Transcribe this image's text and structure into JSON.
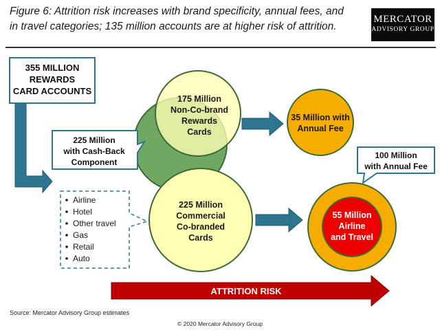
{
  "title_line1": "Figure 6: Attrition risk increases with brand specificity, annual fees, and",
  "title_line2": "in travel categories; 135 million accounts are at higher risk of attrition.",
  "logo": {
    "line1": "MERCATOR",
    "line2": "ADVISORY GROUP"
  },
  "boxes": {
    "total": [
      "355 MILLION",
      "REWARDS",
      "CARD ACCOUNTS"
    ],
    "cashback": [
      "225 Million",
      "with Cash-Back",
      "Component"
    ],
    "annual_fee_100": [
      "100 Million",
      "with Annual Fee"
    ]
  },
  "circles": {
    "non_cobrand": [
      "175 Million",
      "Non-Co-brand",
      "Rewards",
      "Cards"
    ],
    "commercial": [
      "225 Million",
      "Commercial",
      "Co-branded",
      "Cards"
    ],
    "annual_fee_35": [
      "35 Million with",
      "Annual Fee"
    ],
    "airline_travel": [
      "55 Million",
      "Airline",
      "and Travel"
    ]
  },
  "categories": [
    "Airline",
    "Hotel",
    "Other travel",
    "Gas",
    "Retail",
    "Auto"
  ],
  "attrition_label": "ATTRITION RISK",
  "source": "Source: Mercator Advisory Group estimates",
  "copyright": "© 2020 Mercator Advisory Group",
  "colors": {
    "pale_yellow": "#ffffb3",
    "green": "#6fa862",
    "orange": "#f7ad00",
    "red": "#ee0000",
    "teal_arrow": "#2e7591",
    "attrition_arrow": "#c00000"
  }
}
